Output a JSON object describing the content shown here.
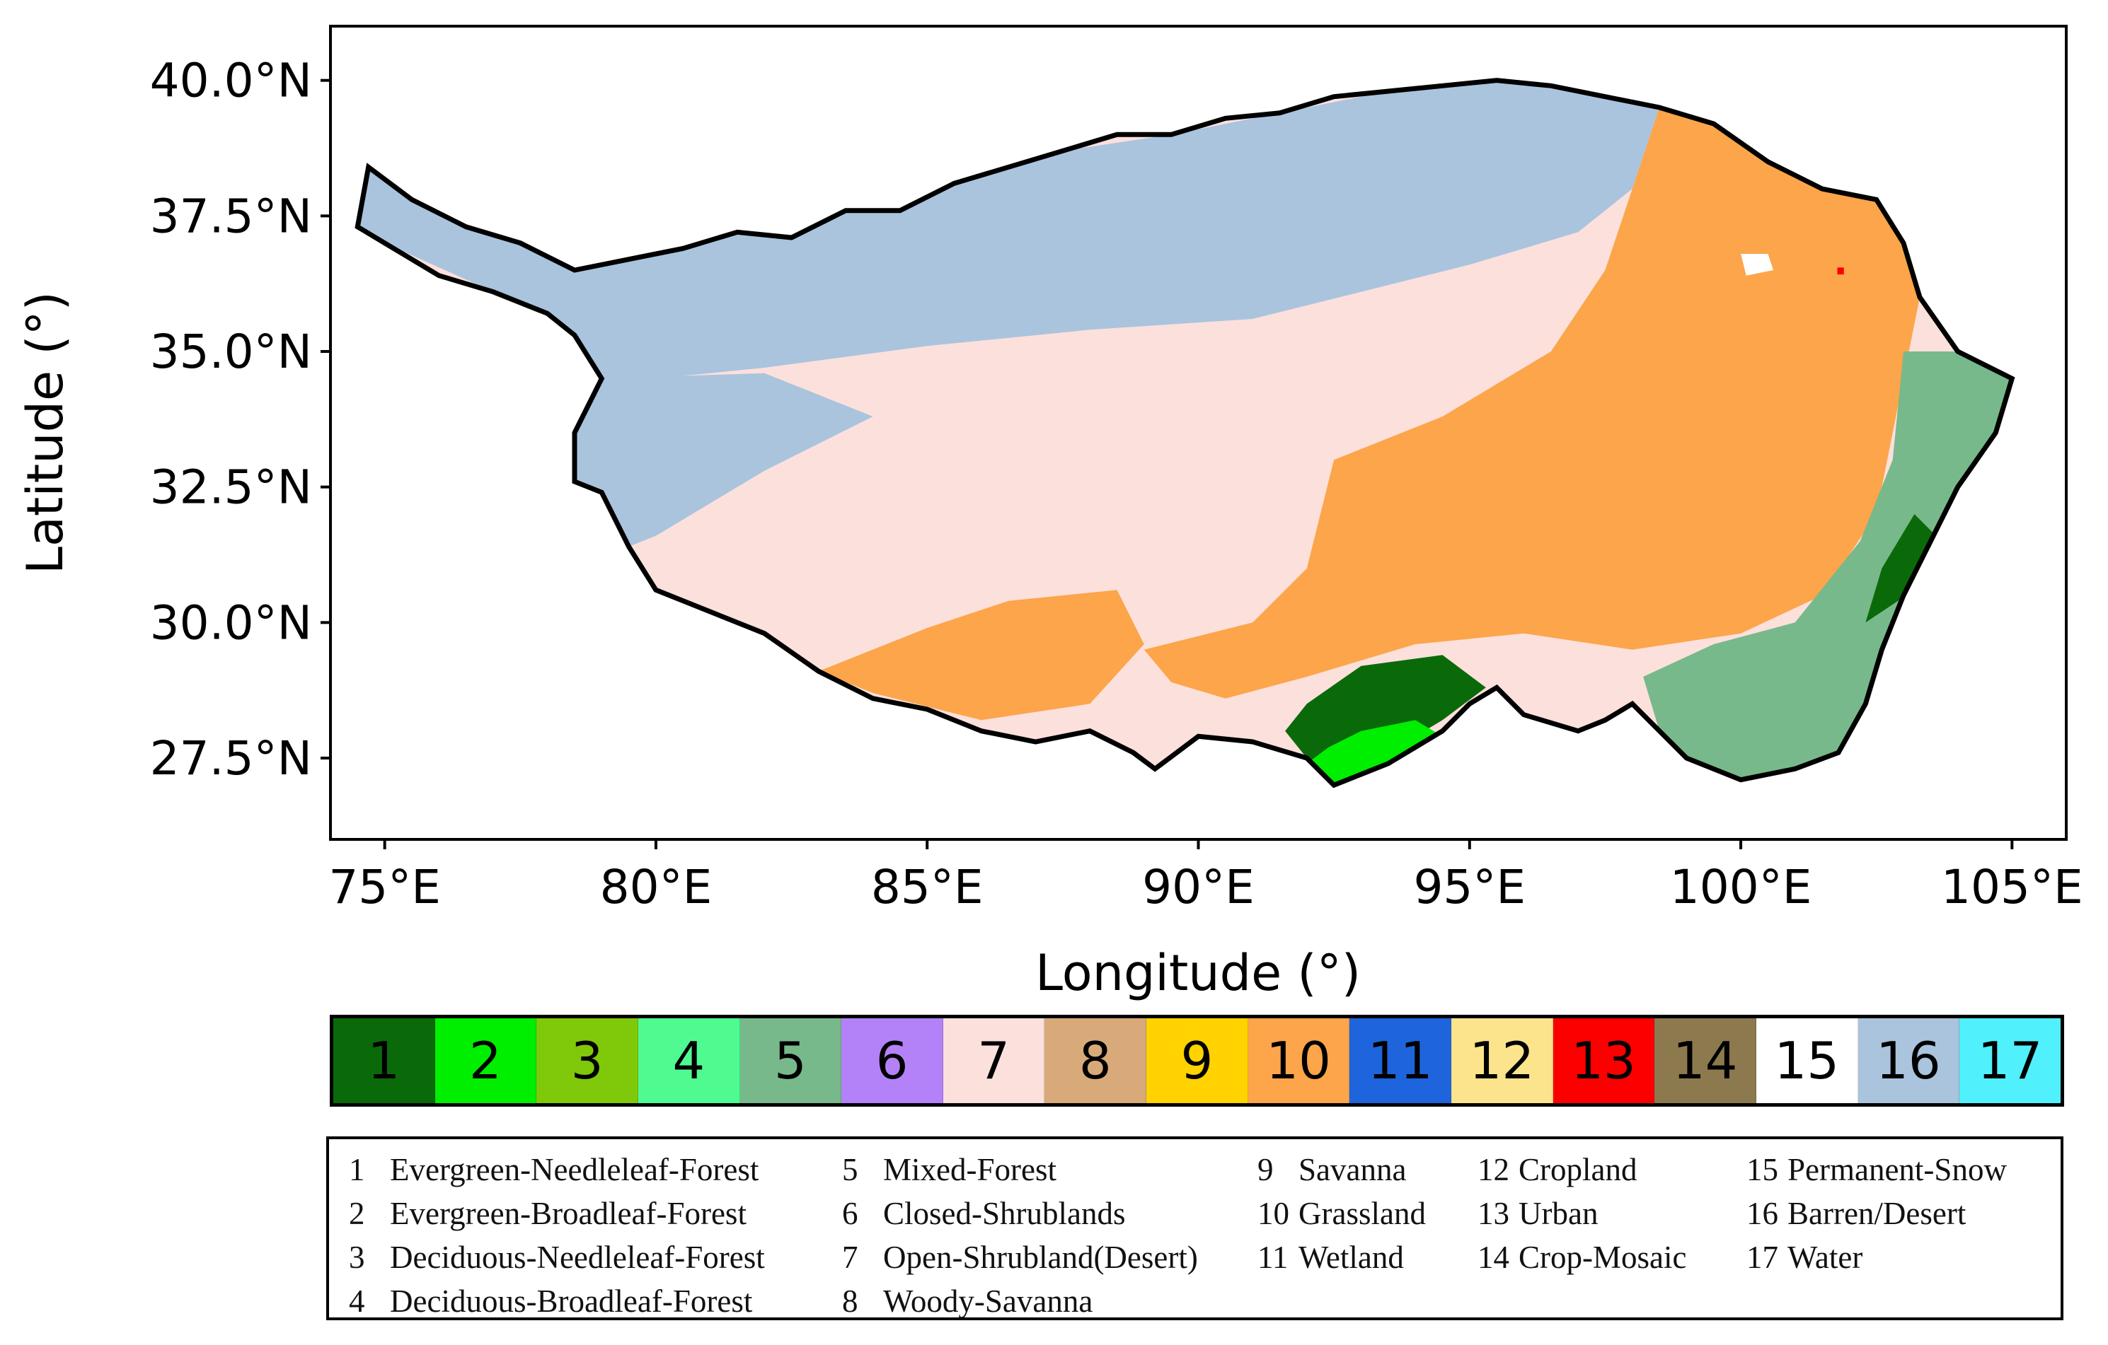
{
  "axes": {
    "xlabel": "Longitude (°)",
    "ylabel": "Latitude (°)",
    "xlim": [
      74,
      106
    ],
    "ylim": [
      26,
      41
    ],
    "x_ticks": [
      {
        "value": 75,
        "label": "75°E"
      },
      {
        "value": 80,
        "label": "80°E"
      },
      {
        "value": 85,
        "label": "85°E"
      },
      {
        "value": 90,
        "label": "90°E"
      },
      {
        "value": 95,
        "label": "95°E"
      },
      {
        "value": 100,
        "label": "100°E"
      },
      {
        "value": 105,
        "label": "105°E"
      }
    ],
    "y_ticks": [
      {
        "value": 40.0,
        "label": "40.0°N"
      },
      {
        "value": 37.5,
        "label": "37.5°N"
      },
      {
        "value": 35.0,
        "label": "35.0°N"
      },
      {
        "value": 32.5,
        "label": "32.5°N"
      },
      {
        "value": 30.0,
        "label": "30.0°N"
      },
      {
        "value": 27.5,
        "label": "27.5°N"
      }
    ]
  },
  "region_outline": [
    [
      74.5,
      37.3
    ],
    [
      74.7,
      38.4
    ],
    [
      75.5,
      37.8
    ],
    [
      76.5,
      37.3
    ],
    [
      77.5,
      37.0
    ],
    [
      78.5,
      36.5
    ],
    [
      79.5,
      36.7
    ],
    [
      80.5,
      36.9
    ],
    [
      81.5,
      37.2
    ],
    [
      82.5,
      37.1
    ],
    [
      83.5,
      37.6
    ],
    [
      84.5,
      37.6
    ],
    [
      85.5,
      38.1
    ],
    [
      86.5,
      38.4
    ],
    [
      87.5,
      38.7
    ],
    [
      88.5,
      39.0
    ],
    [
      89.5,
      39.0
    ],
    [
      90.5,
      39.3
    ],
    [
      91.5,
      39.4
    ],
    [
      92.5,
      39.7
    ],
    [
      93.5,
      39.8
    ],
    [
      94.5,
      39.9
    ],
    [
      95.5,
      40.0
    ],
    [
      96.5,
      39.9
    ],
    [
      97.5,
      39.7
    ],
    [
      98.5,
      39.5
    ],
    [
      99.5,
      39.2
    ],
    [
      100.5,
      38.5
    ],
    [
      101.5,
      38.0
    ],
    [
      102.5,
      37.8
    ],
    [
      103.0,
      37.0
    ],
    [
      103.3,
      36.0
    ],
    [
      104.0,
      35.0
    ],
    [
      105.0,
      34.5
    ],
    [
      104.7,
      33.5
    ],
    [
      104.0,
      32.5
    ],
    [
      103.5,
      31.5
    ],
    [
      103.0,
      30.5
    ],
    [
      102.6,
      29.5
    ],
    [
      102.3,
      28.5
    ],
    [
      101.8,
      27.6
    ],
    [
      101.0,
      27.3
    ],
    [
      100.0,
      27.1
    ],
    [
      99.0,
      27.5
    ],
    [
      98.5,
      28.0
    ],
    [
      98.0,
      28.5
    ],
    [
      97.5,
      28.2
    ],
    [
      97.0,
      28.0
    ],
    [
      96.0,
      28.3
    ],
    [
      95.5,
      28.8
    ],
    [
      95.0,
      28.5
    ],
    [
      94.5,
      28.0
    ],
    [
      93.5,
      27.4
    ],
    [
      92.5,
      27.0
    ],
    [
      92.0,
      27.5
    ],
    [
      91.0,
      27.8
    ],
    [
      90.0,
      27.9
    ],
    [
      89.2,
      27.3
    ],
    [
      88.8,
      27.6
    ],
    [
      88.0,
      28.0
    ],
    [
      87.0,
      27.8
    ],
    [
      86.0,
      28.0
    ],
    [
      85.0,
      28.4
    ],
    [
      84.0,
      28.6
    ],
    [
      83.0,
      29.1
    ],
    [
      82.0,
      29.8
    ],
    [
      81.0,
      30.2
    ],
    [
      80.0,
      30.6
    ],
    [
      79.5,
      31.4
    ],
    [
      79.0,
      32.4
    ],
    [
      78.5,
      32.6
    ],
    [
      78.5,
      33.5
    ],
    [
      79.0,
      34.5
    ],
    [
      78.5,
      35.3
    ],
    [
      78.0,
      35.7
    ],
    [
      77.0,
      36.1
    ],
    [
      76.0,
      36.4
    ],
    [
      75.0,
      37.0
    ]
  ],
  "land_cover_fills": {
    "barren_north": [
      [
        74.7,
        38.4
      ],
      [
        75.5,
        37.8
      ],
      [
        77.5,
        37.0
      ],
      [
        79.5,
        36.7
      ],
      [
        81.5,
        37.2
      ],
      [
        83.5,
        37.6
      ],
      [
        85.5,
        38.1
      ],
      [
        87.5,
        38.7
      ],
      [
        89.5,
        39.0
      ],
      [
        91.5,
        39.4
      ],
      [
        93.5,
        39.8
      ],
      [
        95.5,
        40.0
      ],
      [
        97.5,
        39.7
      ],
      [
        98.5,
        39.5
      ],
      [
        98.0,
        38.0
      ],
      [
        97.0,
        37.2
      ],
      [
        95.0,
        36.6
      ],
      [
        93.0,
        36.1
      ],
      [
        91.0,
        35.6
      ],
      [
        88.0,
        35.4
      ],
      [
        85.0,
        35.1
      ],
      [
        82.0,
        34.7
      ],
      [
        80.0,
        34.5
      ],
      [
        79.0,
        34.5
      ],
      [
        78.5,
        35.3
      ],
      [
        77.0,
        36.1
      ],
      [
        75.0,
        37.0
      ],
      [
        74.5,
        37.3
      ]
    ],
    "barren_west": [
      [
        78.5,
        33.5
      ],
      [
        79.0,
        34.5
      ],
      [
        82.0,
        34.6
      ],
      [
        84.0,
        33.8
      ],
      [
        82.0,
        32.8
      ],
      [
        80.0,
        31.6
      ],
      [
        79.5,
        31.4
      ],
      [
        79.0,
        32.4
      ],
      [
        78.5,
        32.6
      ]
    ],
    "grassland_east": [
      [
        98.5,
        39.5
      ],
      [
        99.5,
        39.2
      ],
      [
        100.5,
        38.5
      ],
      [
        101.5,
        38.0
      ],
      [
        102.5,
        37.8
      ],
      [
        103.0,
        37.0
      ],
      [
        103.3,
        36.0
      ],
      [
        103.0,
        34.5
      ],
      [
        102.5,
        32.0
      ],
      [
        101.5,
        30.5
      ],
      [
        100.0,
        29.8
      ],
      [
        98.0,
        29.5
      ],
      [
        96.0,
        29.8
      ],
      [
        94.0,
        29.6
      ],
      [
        92.0,
        29.0
      ],
      [
        90.5,
        28.6
      ],
      [
        89.5,
        28.9
      ],
      [
        89.0,
        29.5
      ],
      [
        91.0,
        30.0
      ],
      [
        92.0,
        31.0
      ],
      [
        92.5,
        33.0
      ],
      [
        94.5,
        33.8
      ],
      [
        96.5,
        35.0
      ],
      [
        97.5,
        36.5
      ],
      [
        98.0,
        38.0
      ]
    ],
    "grassland_south": [
      [
        83.0,
        29.1
      ],
      [
        85.0,
        29.9
      ],
      [
        86.5,
        30.4
      ],
      [
        88.5,
        30.6
      ],
      [
        89.0,
        29.6
      ],
      [
        88.0,
        28.5
      ],
      [
        86.0,
        28.2
      ],
      [
        84.0,
        28.7
      ]
    ],
    "mixed_forest_east": [
      [
        103.0,
        35.0
      ],
      [
        104.0,
        35.0
      ],
      [
        105.0,
        34.5
      ],
      [
        104.7,
        33.5
      ],
      [
        104.0,
        32.5
      ],
      [
        103.5,
        31.5
      ],
      [
        103.0,
        30.5
      ],
      [
        102.6,
        29.5
      ],
      [
        102.3,
        28.5
      ],
      [
        101.8,
        27.6
      ],
      [
        101.0,
        27.3
      ],
      [
        100.0,
        27.1
      ],
      [
        99.0,
        27.5
      ],
      [
        98.5,
        28.0
      ],
      [
        98.2,
        29.0
      ],
      [
        99.5,
        29.6
      ],
      [
        101.0,
        30.0
      ],
      [
        102.2,
        31.5
      ],
      [
        102.8,
        33.0
      ]
    ],
    "evergreen_needle_south": [
      [
        92.0,
        27.5
      ],
      [
        92.5,
        27.2
      ],
      [
        93.5,
        27.6
      ],
      [
        94.5,
        28.2
      ],
      [
        95.3,
        28.8
      ],
      [
        94.5,
        29.4
      ],
      [
        93.0,
        29.2
      ],
      [
        92.0,
        28.5
      ],
      [
        91.6,
        28.0
      ]
    ],
    "evergreen_broad_south": [
      [
        92.0,
        27.4
      ],
      [
        92.5,
        27.0
      ],
      [
        93.5,
        27.3
      ],
      [
        94.5,
        27.9
      ],
      [
        94.0,
        28.2
      ],
      [
        93.0,
        28.0
      ],
      [
        92.4,
        27.7
      ]
    ],
    "evergreen_needle_east": [
      [
        102.3,
        30.0
      ],
      [
        103.2,
        30.6
      ],
      [
        103.6,
        31.6
      ],
      [
        103.2,
        32.0
      ],
      [
        102.6,
        31.0
      ]
    ],
    "urban_spot": [
      [
        101.78,
        36.55
      ],
      [
        101.9,
        36.55
      ],
      [
        101.9,
        36.42
      ],
      [
        101.78,
        36.42
      ]
    ],
    "snow_spot": [
      [
        100.0,
        36.8
      ],
      [
        100.5,
        36.8
      ],
      [
        100.6,
        36.5
      ],
      [
        100.1,
        36.4
      ]
    ]
  },
  "colorbar": [
    {
      "value": "1",
      "color": "#0a6a0a"
    },
    {
      "value": "2",
      "color": "#00ee00"
    },
    {
      "value": "3",
      "color": "#80c80a"
    },
    {
      "value": "4",
      "color": "#4ffb91"
    },
    {
      "value": "5",
      "color": "#78b98c"
    },
    {
      "value": "6",
      "color": "#b482f8"
    },
    {
      "value": "7",
      "color": "#fce0dc"
    },
    {
      "value": "8",
      "color": "#d8aa7a"
    },
    {
      "value": "9",
      "color": "#ffd200"
    },
    {
      "value": "10",
      "color": "#fca54a"
    },
    {
      "value": "11",
      "color": "#1e64dc"
    },
    {
      "value": "12",
      "color": "#fce48c"
    },
    {
      "value": "13",
      "color": "#fc0000"
    },
    {
      "value": "14",
      "color": "#8c7a4e"
    },
    {
      "value": "15",
      "color": "#ffffff"
    },
    {
      "value": "16",
      "color": "#aac4de"
    },
    {
      "value": "17",
      "color": "#50f0fc"
    }
  ],
  "legend_columns": [
    [
      {
        "num": "1",
        "label": "Evergreen-Needleleaf-Forest"
      },
      {
        "num": "2",
        "label": "Evergreen-Broadleaf-Forest"
      },
      {
        "num": "3",
        "label": "Deciduous-Needleleaf-Forest"
      },
      {
        "num": "4",
        "label": "Deciduous-Broadleaf-Forest"
      }
    ],
    [
      {
        "num": "5",
        "label": "Mixed-Forest"
      },
      {
        "num": "6",
        "label": "Closed-Shrublands"
      },
      {
        "num": "7",
        "label": "Open-Shrubland(Desert)"
      },
      {
        "num": "8",
        "label": "Woody-Savanna"
      }
    ],
    [
      {
        "num": "9",
        "label": "Savanna"
      },
      {
        "num": "10",
        "label": "Grassland"
      },
      {
        "num": "11",
        "label": "Wetland"
      }
    ],
    [
      {
        "num": "12",
        "label": "Cropland"
      },
      {
        "num": "13",
        "label": "Urban"
      },
      {
        "num": "14",
        "label": "Crop-Mosaic"
      }
    ],
    [
      {
        "num": "15",
        "label": "Permanent-Snow"
      },
      {
        "num": "16",
        "label": "Barren/Desert"
      },
      {
        "num": "17",
        "label": "Water"
      }
    ]
  ]
}
